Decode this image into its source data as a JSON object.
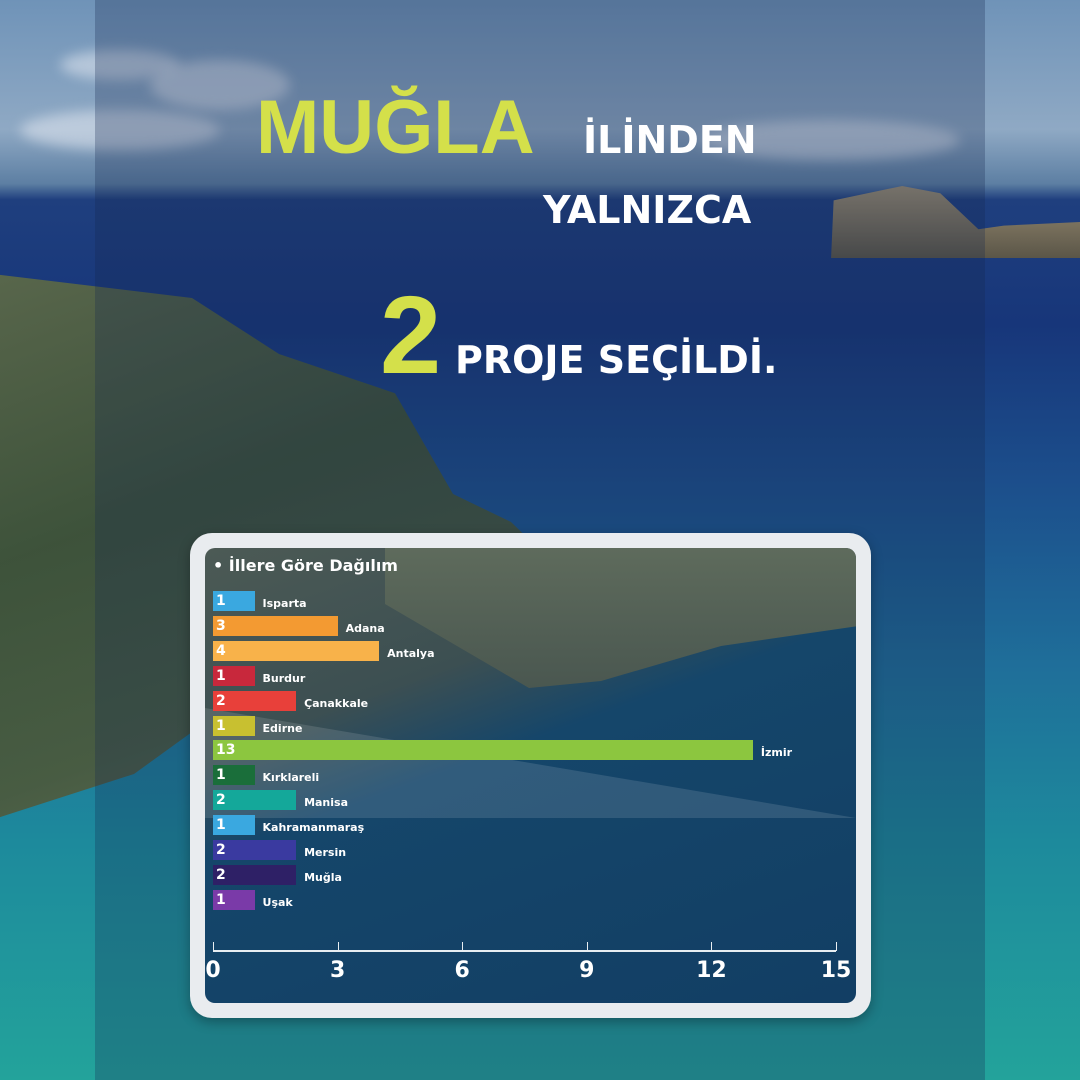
{
  "headline": {
    "province": "MUĞLA",
    "suffix": "İLİNDEN",
    "line2": "YALNIZCA",
    "count": "2",
    "line3": "PROJE SEÇİLDİ."
  },
  "colors": {
    "accent": "#d4e04a"
  },
  "chart_data": {
    "type": "bar",
    "orientation": "horizontal",
    "title": "• İllere Göre Dağılım",
    "categories": [
      "Isparta",
      "Adana",
      "Antalya",
      "Burdur",
      "Çanakkale",
      "Edirne",
      "İzmir",
      "Kırklareli",
      "Manisa",
      "Kahramanmaraş",
      "Mersin",
      "Muğla",
      "Uşak"
    ],
    "values": [
      1,
      3,
      4,
      1,
      2,
      1,
      13,
      1,
      2,
      1,
      2,
      2,
      1
    ],
    "colors": [
      "#3aa8e0",
      "#f39a32",
      "#f8b24a",
      "#c8283c",
      "#e8403a",
      "#c8c030",
      "#8cc63f",
      "#1a6e3a",
      "#14a89a",
      "#3aa8e0",
      "#3a3aa0",
      "#2e2066",
      "#7a3aa8"
    ],
    "xlim": [
      0,
      15
    ],
    "xticks": [
      "0",
      "3",
      "6",
      "9",
      "12",
      "15"
    ],
    "grid": false
  }
}
